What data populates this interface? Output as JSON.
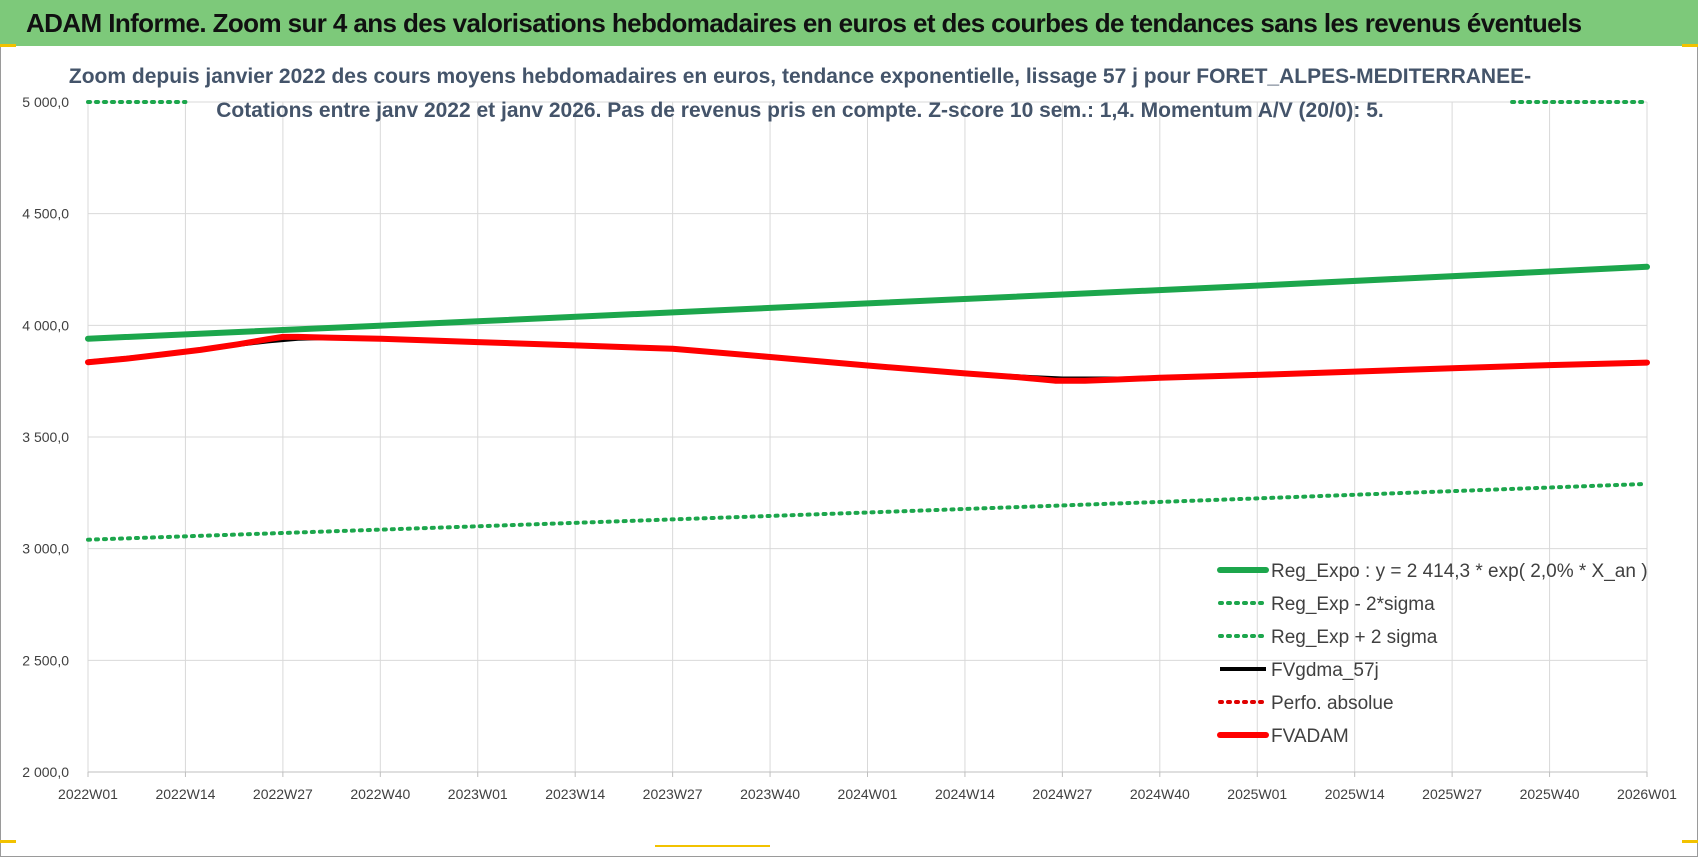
{
  "header": {
    "title": "ADAM Informe. Zoom sur 4 ans des valorisations hebdomadaires en euros et des courbes de tendances sans les revenus éventuels"
  },
  "colors": {
    "header_bg": "#7dc97a",
    "reg_expo": "#1ca64c",
    "sigma": "#1ca64c",
    "fvgdma": "#000000",
    "perfo": "#e00000",
    "fvadam": "#ff0000",
    "grid": "#d9d9d9",
    "accent": "#f2c200"
  },
  "chart_data": {
    "type": "line",
    "title": "Zoom depuis janvier 2022 des cours moyens hebdomadaires en euros, tendance exponentielle, lissage 57 j pour FORET_ALPES-MEDITERRANEE-",
    "subtitle": "Cotations entre janv 2022 et janv 2026. Pas de revenus pris en compte. Z-score 10 sem.: 1,4. Momentum A/V (20/0): 5.",
    "xlabel": "",
    "ylabel": "",
    "ylim": [
      2000,
      5000
    ],
    "y_ticks": [
      "2 000,0",
      "2 500,0",
      "3 000,0",
      "3 500,0",
      "4 000,0",
      "4 500,0",
      "5 000,0"
    ],
    "y_tick_values": [
      2000,
      2500,
      3000,
      3500,
      4000,
      4500,
      5000
    ],
    "x_tick_labels": [
      "2022W01",
      "2022W14",
      "2022W27",
      "2022W40",
      "2023W01",
      "2023W14",
      "2023W27",
      "2023W40",
      "2024W01",
      "2024W14",
      "2024W27",
      "2024W40",
      "2025W01",
      "2025W14",
      "2025W27",
      "2025W40",
      "2026W01"
    ],
    "x_tick_index": [
      0,
      13,
      26,
      39,
      52,
      65,
      78,
      91,
      104,
      117,
      130,
      143,
      156,
      169,
      182,
      195,
      208
    ],
    "x_range": [
      0,
      208
    ],
    "legend_position": "bottom-right",
    "series": [
      {
        "name": "Reg_Expo : y = 2 414,3 * exp( 2,0% *  X_an )",
        "style": "solid-thick",
        "color": "#1ca64c",
        "points": [
          [
            0,
            3940
          ],
          [
            52,
            4018
          ],
          [
            104,
            4098
          ],
          [
            156,
            4178
          ],
          [
            208,
            4262
          ]
        ]
      },
      {
        "name": "Reg_Exp - 2*sigma",
        "style": "dotted",
        "color": "#1ca64c",
        "points": [
          [
            0,
            3040
          ],
          [
            52,
            3100
          ],
          [
            104,
            3162
          ],
          [
            156,
            3225
          ],
          [
            208,
            3290
          ]
        ]
      },
      {
        "name": "Reg_Exp + 2 sigma",
        "style": "dotted",
        "color": "#1ca64c",
        "points": [
          [
            0,
            5000
          ],
          [
            13,
            5000
          ]
        ],
        "points_right": [
          [
            190,
            5000
          ],
          [
            208,
            5000
          ]
        ]
      },
      {
        "name": "FVgdma_57j",
        "style": "solid",
        "color": "#000000",
        "points": [
          [
            0,
            3838
          ],
          [
            10,
            3870
          ],
          [
            18,
            3905
          ],
          [
            24,
            3928
          ],
          [
            28,
            3940
          ],
          [
            34,
            3945
          ],
          [
            40,
            3940
          ],
          [
            52,
            3925
          ],
          [
            65,
            3910
          ],
          [
            78,
            3895
          ],
          [
            91,
            3858
          ],
          [
            104,
            3820
          ],
          [
            117,
            3785
          ],
          [
            126,
            3768
          ],
          [
            130,
            3762
          ],
          [
            134,
            3762
          ],
          [
            138,
            3762
          ],
          [
            143,
            3765
          ],
          [
            156,
            3778
          ],
          [
            169,
            3793
          ],
          [
            182,
            3808
          ],
          [
            195,
            3822
          ],
          [
            208,
            3833
          ]
        ]
      },
      {
        "name": "Perfo. absolue",
        "style": "dotted",
        "color": "#e00000",
        "points": []
      },
      {
        "name": "FVADAM",
        "style": "solid-thick",
        "color": "#ff0000",
        "points": [
          [
            0,
            3835
          ],
          [
            5,
            3850
          ],
          [
            10,
            3870
          ],
          [
            15,
            3890
          ],
          [
            20,
            3915
          ],
          [
            24,
            3938
          ],
          [
            26,
            3948
          ],
          [
            28,
            3948
          ],
          [
            32,
            3945
          ],
          [
            39,
            3940
          ],
          [
            52,
            3925
          ],
          [
            65,
            3910
          ],
          [
            78,
            3895
          ],
          [
            91,
            3858
          ],
          [
            104,
            3820
          ],
          [
            117,
            3785
          ],
          [
            124,
            3768
          ],
          [
            129,
            3752
          ],
          [
            133,
            3752
          ],
          [
            137,
            3757
          ],
          [
            143,
            3765
          ],
          [
            156,
            3778
          ],
          [
            169,
            3793
          ],
          [
            182,
            3808
          ],
          [
            195,
            3822
          ],
          [
            208,
            3833
          ]
        ]
      }
    ]
  }
}
